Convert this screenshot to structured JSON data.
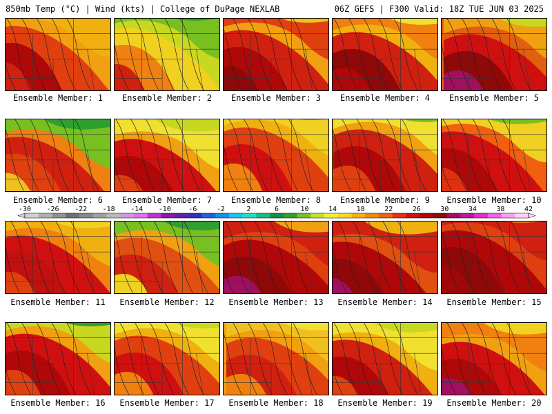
{
  "header": {
    "left": "850mb Temp (°C) | Wind (kts) | College of DuPage NEXLAB",
    "right": "06Z GEFS | F300 Valid: 18Z TUE JUN 03 2025"
  },
  "colorbar": {
    "labels": [
      "-30",
      "-26",
      "-22",
      "-18",
      "-14",
      "-10",
      "-6",
      "-2",
      "2",
      "6",
      "10",
      "14",
      "18",
      "22",
      "26",
      "30",
      "34",
      "38",
      "42"
    ],
    "colors": [
      "#d0d0d0",
      "#b0b0b0",
      "#909090",
      "#707070",
      "#888888",
      "#a0a0a0",
      "#b8b8b8",
      "#d098e0",
      "#e070f0",
      "#c030d8",
      "#8a1aa8",
      "#6020b0",
      "#3030c8",
      "#2060e0",
      "#1090f0",
      "#10c8f0",
      "#20e0c0",
      "#10c080",
      "#109048",
      "#2ea02e",
      "#78c020",
      "#c8e020",
      "#f0f030",
      "#f8d820",
      "#f8b010",
      "#f08808",
      "#f06010",
      "#e83010",
      "#d01010",
      "#b00808",
      "#900808",
      "#a01060",
      "#c01898",
      "#e030c8",
      "#f060e8",
      "#f8a0f0",
      "#ffd0ff"
    ]
  },
  "panels": [
    {
      "label": "Ensemble Member: 1",
      "colors": [
        "#f0a010",
        "#e04010",
        "#b00808",
        "#d02010",
        "#f0b010",
        "#c8d820"
      ]
    },
    {
      "label": "Ensemble Member: 2",
      "colors": [
        "#c8d820",
        "#f0d020",
        "#f08010",
        "#d02010",
        "#78c020",
        "#2ea02e"
      ]
    },
    {
      "label": "Ensemble Member: 3",
      "colors": [
        "#f0a010",
        "#d02010",
        "#b00808",
        "#900808",
        "#e04010",
        "#f0c020"
      ]
    },
    {
      "label": "Ensemble Member: 4",
      "colors": [
        "#f0b010",
        "#d02010",
        "#900808",
        "#b00808",
        "#f08010",
        "#f0e030"
      ]
    },
    {
      "label": "Ensemble Member: 5",
      "colors": [
        "#e06010",
        "#d01010",
        "#900808",
        "#a01060",
        "#f0a010",
        "#c8d820"
      ]
    },
    {
      "label": "Ensemble Member: 6",
      "colors": [
        "#f08010",
        "#d02010",
        "#e04010",
        "#f0c020",
        "#78c020",
        "#2ea02e"
      ]
    },
    {
      "label": "Ensemble Member: 7",
      "colors": [
        "#f0a010",
        "#d01010",
        "#b00808",
        "#e04010",
        "#f0e030",
        "#c8d820"
      ]
    },
    {
      "label": "Ensemble Member: 8",
      "colors": [
        "#f0b010",
        "#e04010",
        "#d01010",
        "#f08010",
        "#f0d020",
        "#78c020"
      ]
    },
    {
      "label": "Ensemble Member: 9",
      "colors": [
        "#f0a010",
        "#d02010",
        "#b00808",
        "#e04010",
        "#f0e030",
        "#78c020"
      ]
    },
    {
      "label": "Ensemble Member: 10",
      "colors": [
        "#f06010",
        "#d01010",
        "#b00808",
        "#e03010",
        "#f0d020",
        "#78c020"
      ]
    },
    {
      "label": "Ensemble Member: 11",
      "colors": [
        "#f08010",
        "#d01010",
        "#c01010",
        "#e04010",
        "#f0b010",
        "#f0d020"
      ]
    },
    {
      "label": "Ensemble Member: 12",
      "colors": [
        "#f0a010",
        "#e05010",
        "#d02010",
        "#f0d020",
        "#78c020",
        "#2ea02e"
      ]
    },
    {
      "label": "Ensemble Member: 13",
      "colors": [
        "#e04010",
        "#b00808",
        "#900808",
        "#a01060",
        "#d02010",
        "#f0a010"
      ]
    },
    {
      "label": "Ensemble Member: 14",
      "colors": [
        "#e05010",
        "#b00808",
        "#900808",
        "#a01060",
        "#d02010",
        "#f0b010"
      ]
    },
    {
      "label": "Ensemble Member: 15",
      "colors": [
        "#e04010",
        "#b00808",
        "#900808",
        "#a00808",
        "#d02010",
        "#f08010"
      ]
    },
    {
      "label": "Ensemble Member: 16",
      "colors": [
        "#f0a010",
        "#d01010",
        "#b00808",
        "#e04010",
        "#c8d820",
        "#2ea02e"
      ]
    },
    {
      "label": "Ensemble Member: 17",
      "colors": [
        "#f0b010",
        "#e04010",
        "#d01010",
        "#f08010",
        "#f0e030",
        "#c8d820"
      ]
    },
    {
      "label": "Ensemble Member: 18",
      "colors": [
        "#f0a010",
        "#e04010",
        "#d02010",
        "#f08010",
        "#f0c020",
        "#f0e030"
      ]
    },
    {
      "label": "Ensemble Member: 19",
      "colors": [
        "#f0b010",
        "#d02010",
        "#b00808",
        "#e04010",
        "#f0e030",
        "#c8d820"
      ]
    },
    {
      "label": "Ensemble Member: 20",
      "colors": [
        "#f0a010",
        "#d01010",
        "#b00808",
        "#a01060",
        "#f08010",
        "#f0d020"
      ]
    }
  ]
}
